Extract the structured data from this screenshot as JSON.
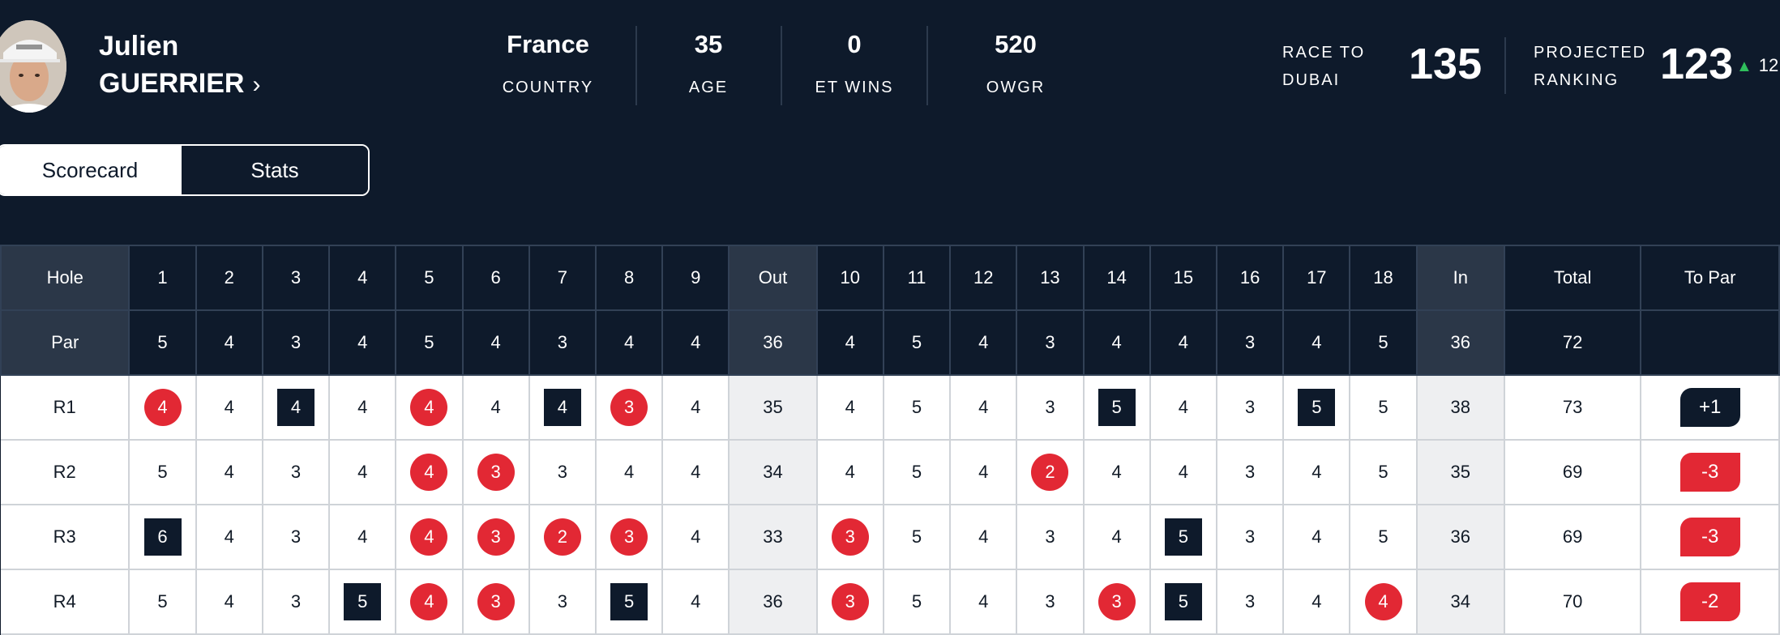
{
  "player": {
    "first_name": "Julien",
    "last_name": "GUERRIER",
    "chevron": "›"
  },
  "stats": [
    {
      "value": "France",
      "label": "COUNTRY"
    },
    {
      "value": "35",
      "label": "AGE"
    },
    {
      "value": "0",
      "label": "ET WINS"
    },
    {
      "value": "520",
      "label": "OWGR"
    }
  ],
  "race_to_dubai": {
    "label_line1": "RACE TO",
    "label_line2": "DUBAI",
    "value": "135"
  },
  "projected_ranking": {
    "label_line1": "PROJECTED",
    "label_line2": "RANKING",
    "value": "123",
    "movement_icon": "triangle-up-icon",
    "movement": "12",
    "movement_color": "#2fbf5c"
  },
  "tabs": [
    {
      "label": "Scorecard",
      "active": true
    },
    {
      "label": "Stats",
      "active": false
    }
  ],
  "colors": {
    "background": "#0e1a2b",
    "birdie": "#e22834",
    "bogey": "#0e1a2b",
    "up_arrow": "#2fbf5c"
  },
  "scorecard": {
    "columns": [
      "Hole",
      "1",
      "2",
      "3",
      "4",
      "5",
      "6",
      "7",
      "8",
      "9",
      "Out",
      "10",
      "11",
      "12",
      "13",
      "14",
      "15",
      "16",
      "17",
      "18",
      "In",
      "Total",
      "To Par"
    ],
    "par": [
      "Par",
      "5",
      "4",
      "3",
      "4",
      "5",
      "4",
      "3",
      "4",
      "4",
      "36",
      "4",
      "5",
      "4",
      "3",
      "4",
      "4",
      "3",
      "4",
      "5",
      "36",
      "72",
      ""
    ],
    "rounds": [
      {
        "label": "R1",
        "scores": [
          "4",
          "4",
          "4",
          "4",
          "4",
          "4",
          "4",
          "3",
          "4",
          "35",
          "4",
          "5",
          "4",
          "3",
          "5",
          "4",
          "3",
          "5",
          "5",
          "38",
          "73"
        ],
        "to_par": "+1"
      },
      {
        "label": "R2",
        "scores": [
          "5",
          "4",
          "3",
          "4",
          "4",
          "3",
          "3",
          "4",
          "4",
          "34",
          "4",
          "5",
          "4",
          "2",
          "4",
          "4",
          "3",
          "4",
          "5",
          "35",
          "69"
        ],
        "to_par": "-3"
      },
      {
        "label": "R3",
        "scores": [
          "6",
          "4",
          "3",
          "4",
          "4",
          "3",
          "2",
          "3",
          "4",
          "33",
          "3",
          "5",
          "4",
          "3",
          "4",
          "5",
          "3",
          "4",
          "5",
          "36",
          "69"
        ],
        "to_par": "-3"
      },
      {
        "label": "R4",
        "scores": [
          "5",
          "4",
          "3",
          "5",
          "4",
          "3",
          "3",
          "5",
          "4",
          "36",
          "3",
          "5",
          "4",
          "3",
          "3",
          "5",
          "3",
          "4",
          "4",
          "34",
          "70"
        ],
        "to_par": "-2"
      }
    ]
  }
}
